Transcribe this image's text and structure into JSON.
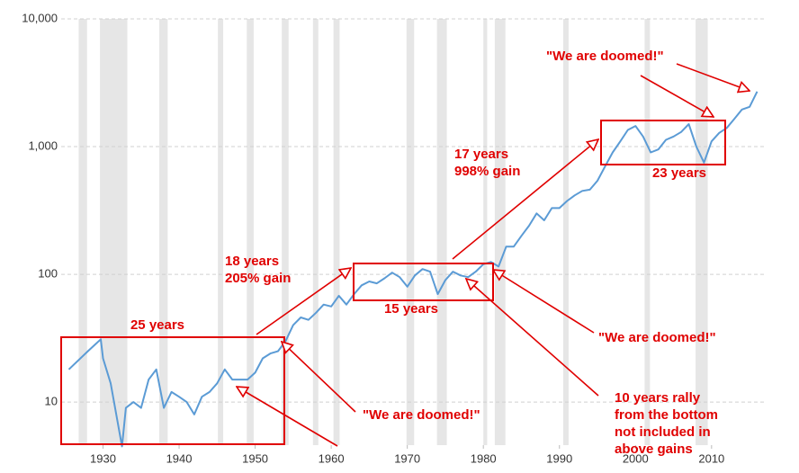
{
  "chart_data": {
    "type": "line",
    "x": [
      1925.5,
      1928,
      1929.7,
      1930,
      1931,
      1932.5,
      1933,
      1934,
      1935,
      1936,
      1937,
      1938,
      1939,
      1940,
      1941,
      1942,
      1943,
      1944,
      1945,
      1946,
      1947,
      1948,
      1949,
      1950,
      1951,
      1952,
      1953,
      1954,
      1955,
      1956,
      1957,
      1958,
      1959,
      1960,
      1961,
      1962,
      1963,
      1964,
      1965,
      1966,
      1967,
      1968,
      1969,
      1970,
      1971,
      1972,
      1973,
      1974,
      1975,
      1976,
      1977,
      1978,
      1979,
      1980,
      1981,
      1982,
      1983,
      1984,
      1985,
      1986,
      1987,
      1988,
      1989,
      1990,
      1991,
      1992,
      1993,
      1994,
      1995,
      1996,
      1997,
      1998,
      1999,
      2000,
      2001,
      2002,
      2003,
      2004,
      2005,
      2006,
      2007,
      2008,
      2009,
      2010,
      2011,
      2012,
      2013,
      2014,
      2015,
      2016
    ],
    "series": [
      {
        "color": "#5b9bd5",
        "values": [
          18,
          25,
          31,
          22,
          14,
          4.5,
          9,
          10,
          9,
          15,
          18,
          9,
          12,
          11,
          10,
          8,
          11,
          12,
          14,
          18,
          15,
          15,
          15,
          17,
          22,
          24,
          25,
          30,
          40,
          46,
          44,
          50,
          58,
          56,
          68,
          58,
          70,
          82,
          88,
          85,
          93,
          103,
          95,
          80,
          98,
          110,
          105,
          70,
          90,
          105,
          98,
          95,
          105,
          120,
          125,
          115,
          165,
          165,
          200,
          240,
          300,
          265,
          330,
          330,
          375,
          415,
          450,
          460,
          540,
          700,
          900,
          1100,
          1350,
          1450,
          1200,
          900,
          950,
          1130,
          1200,
          1300,
          1500,
          1000,
          750,
          1100,
          1280,
          1400,
          1650,
          1950,
          2050,
          2700
        ]
      }
    ],
    "recessions": [
      [
        1926.8,
        1927.9
      ],
      [
        1929.6,
        1933.2
      ],
      [
        1937.4,
        1938.5
      ],
      [
        1945.1,
        1945.8
      ],
      [
        1948.9,
        1949.8
      ],
      [
        1953.5,
        1954.4
      ],
      [
        1957.6,
        1958.3
      ],
      [
        1960.3,
        1961.1
      ],
      [
        1969.9,
        1970.9
      ],
      [
        1973.9,
        1975.2
      ],
      [
        1980.0,
        1980.5
      ],
      [
        1981.5,
        1982.9
      ],
      [
        1990.5,
        1991.2
      ],
      [
        2001.2,
        2001.9
      ],
      [
        2007.9,
        2009.5
      ]
    ],
    "xlim": [
      1924.5,
      2017
    ],
    "xticks": [
      1930,
      1940,
      1950,
      1960,
      1970,
      1980,
      1990,
      2000,
      2010
    ],
    "ylim": [
      4.6,
      10000
    ],
    "log_scale": true,
    "grid": true,
    "yticks": [
      10,
      100,
      {
        "value": 1000,
        "label": "1,000"
      },
      {
        "value": 10000,
        "label": "10,000"
      }
    ],
    "annotations": [
      "25 years",
      "18 years",
      "205% gain",
      "15 years",
      "17 years",
      "998% gain",
      "23 years",
      "\"We are doomed!\"",
      "\"We are doomed!\"",
      "\"We are doomed!\"",
      "10 years rally",
      "from the bottom",
      "not included in",
      "above gains"
    ]
  }
}
